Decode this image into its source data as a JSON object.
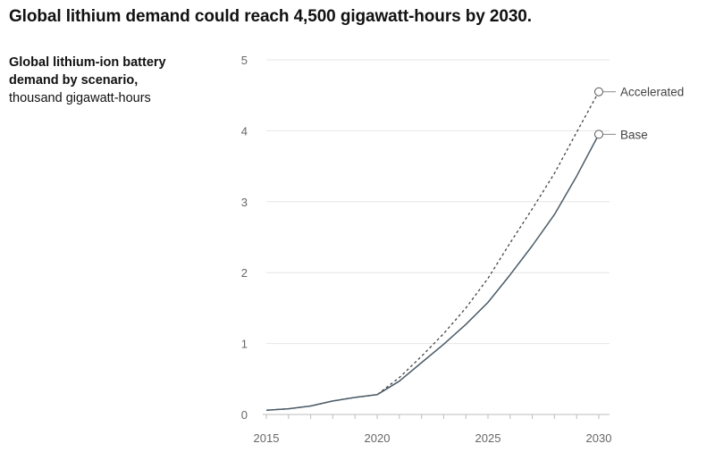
{
  "header": {
    "title": "Global lithium demand could reach 4,500 gigawatt-hours by 2030."
  },
  "chart_data": {
    "type": "line",
    "subtitle_bold": "Global lithium-ion battery demand by scenario,",
    "subtitle_unit": "thousand gigawatt-hours",
    "xlim": [
      2015,
      2030
    ],
    "ylim": [
      0,
      5
    ],
    "x_ticks": [
      "2015",
      "2020",
      "2025",
      "2030"
    ],
    "y_ticks": [
      "0",
      "1",
      "2",
      "3",
      "4",
      "5"
    ],
    "grid": "horizontal",
    "series": [
      {
        "name": "Base",
        "style": "solid",
        "color": "#4a5a66",
        "x": [
          2015,
          2016,
          2017,
          2018,
          2019,
          2020,
          2021,
          2022,
          2023,
          2024,
          2025,
          2026,
          2027,
          2028,
          2029,
          2030
        ],
        "y": [
          0.06,
          0.08,
          0.12,
          0.19,
          0.24,
          0.28,
          0.47,
          0.73,
          0.99,
          1.27,
          1.58,
          1.97,
          2.38,
          2.82,
          3.36,
          3.95
        ]
      },
      {
        "name": "Accelerated",
        "style": "dashed",
        "color": "#444444",
        "x": [
          2015,
          2016,
          2017,
          2018,
          2019,
          2020,
          2021,
          2022,
          2023,
          2024,
          2025,
          2026,
          2027,
          2028,
          2029,
          2030
        ],
        "y": [
          0.06,
          0.08,
          0.12,
          0.19,
          0.24,
          0.28,
          0.52,
          0.82,
          1.14,
          1.5,
          1.92,
          2.42,
          2.9,
          3.4,
          3.98,
          4.55
        ]
      }
    ]
  }
}
